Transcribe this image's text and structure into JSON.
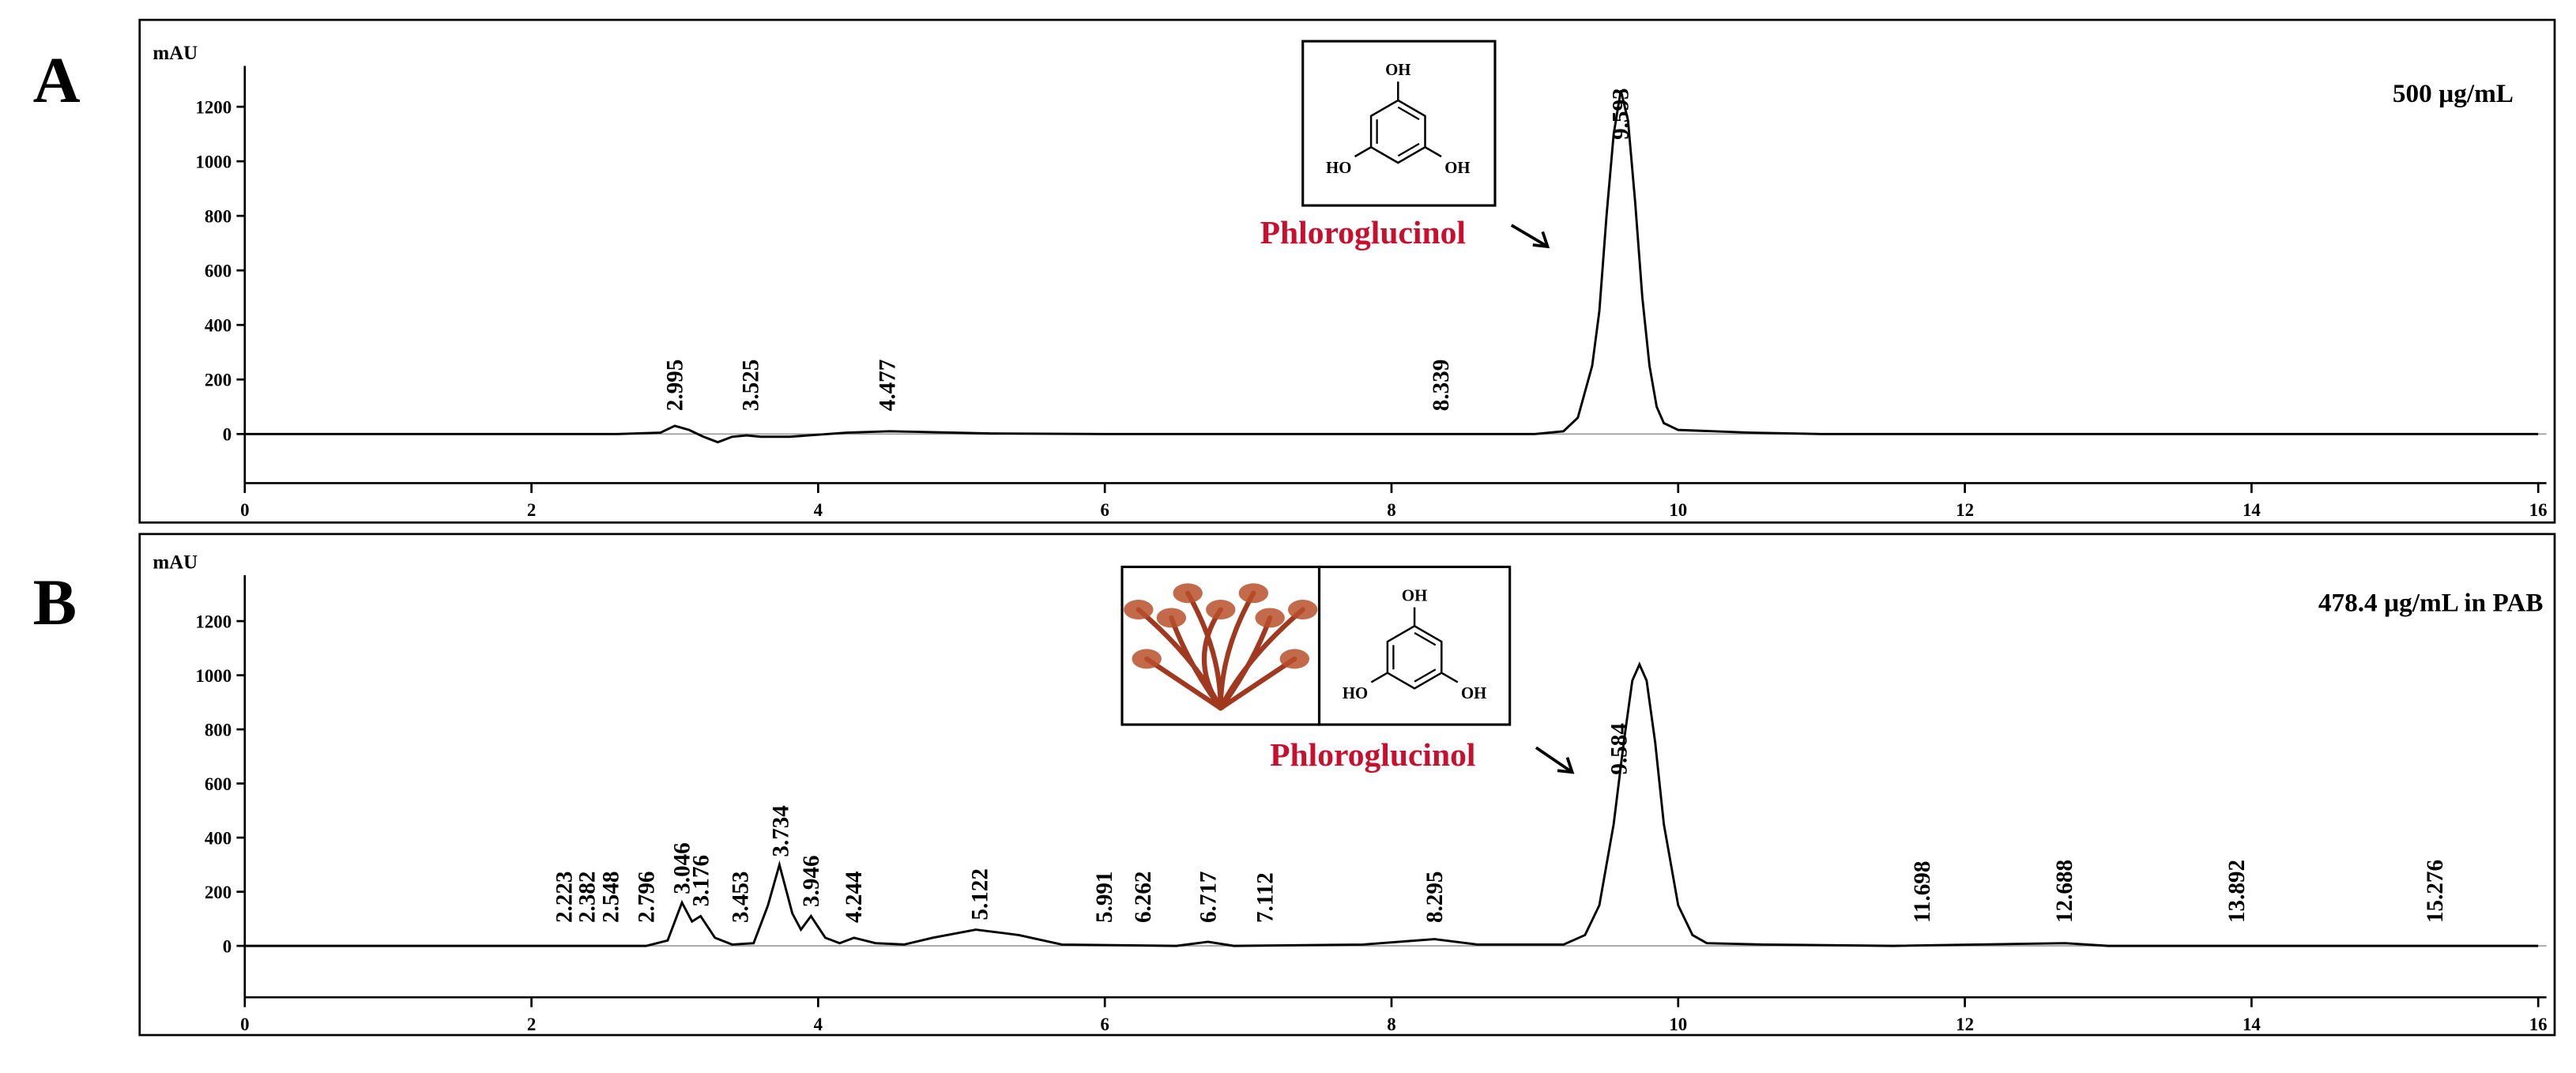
{
  "chart_data": [
    {
      "type": "line",
      "panel_label": "A",
      "y_label": "mAU",
      "concentration": "500 µg/mL",
      "compound": "Phloroglucinol",
      "compound_color": "#c8102e",
      "structure_labels": [
        "OH",
        "HO",
        "OH"
      ],
      "x": [
        0,
        2.6,
        2.9,
        3.0,
        3.1,
        3.2,
        3.3,
        3.4,
        3.5,
        3.6,
        3.8,
        4.2,
        4.5,
        4.7,
        5.2,
        6,
        8,
        9.0,
        9.2,
        9.3,
        9.4,
        9.45,
        9.5,
        9.55,
        9.6,
        9.65,
        9.7,
        9.75,
        9.8,
        9.85,
        9.9,
        10.0,
        10.5,
        11,
        16
      ],
      "series": [
        {
          "color": "#000000",
          "values": [
            0,
            0,
            5,
            30,
            15,
            -10,
            -30,
            -10,
            -5,
            -10,
            -10,
            5,
            10,
            8,
            2,
            0,
            0,
            0,
            10,
            60,
            250,
            450,
            800,
            1100,
            1260,
            1150,
            850,
            500,
            250,
            100,
            40,
            15,
            5,
            0,
            0
          ]
        }
      ],
      "peak_labels": [
        2.995,
        3.525,
        4.477,
        8.339,
        9.593
      ],
      "xlim": [
        0,
        16
      ],
      "xticks": [
        0,
        2,
        4,
        6,
        8,
        10,
        12,
        14,
        16
      ],
      "ylim": [
        -180,
        1350
      ],
      "yticks": [
        0,
        200,
        400,
        600,
        800,
        1000,
        1200
      ]
    },
    {
      "type": "line",
      "panel_label": "B",
      "y_label": "mAU",
      "concentration": "478.4 µg/mL  in PAB",
      "compound": "Phloroglucinol",
      "compound_color": "#c8102e",
      "structure_labels": [
        "OH",
        "HO",
        "OH"
      ],
      "x": [
        0,
        2.8,
        2.95,
        3.05,
        3.12,
        3.18,
        3.28,
        3.4,
        3.55,
        3.65,
        3.73,
        3.82,
        3.88,
        3.95,
        4.05,
        4.15,
        4.25,
        4.4,
        4.6,
        4.8,
        5.1,
        5.4,
        5.7,
        6.5,
        6.72,
        6.9,
        7.8,
        8.3,
        8.6,
        9.2,
        9.35,
        9.45,
        9.55,
        9.62,
        9.68,
        9.73,
        9.78,
        9.84,
        9.9,
        10.0,
        10.1,
        10.2,
        10.6,
        11.5,
        12.7,
        13,
        16
      ],
      "series": [
        {
          "color": "#000000",
          "values": [
            0,
            0,
            20,
            160,
            90,
            110,
            30,
            5,
            10,
            150,
            300,
            120,
            60,
            110,
            30,
            10,
            30,
            10,
            5,
            30,
            60,
            40,
            5,
            0,
            15,
            0,
            5,
            25,
            5,
            5,
            40,
            150,
            450,
            750,
            980,
            1040,
            980,
            750,
            450,
            150,
            40,
            10,
            5,
            0,
            10,
            0,
            0
          ]
        }
      ],
      "peak_labels": [
        2.223,
        2.382,
        2.548,
        2.796,
        3.046,
        3.176,
        3.453,
        3.734,
        3.946,
        4.244,
        5.122,
        5.991,
        6.262,
        6.717,
        7.112,
        8.295,
        9.584,
        11.698,
        12.688,
        13.892,
        15.276
      ],
      "xlim": [
        0,
        16
      ],
      "xticks": [
        0,
        2,
        4,
        6,
        8,
        10,
        12,
        14,
        16
      ],
      "ylim": [
        -190,
        1370
      ],
      "yticks": [
        0,
        200,
        400,
        600,
        800,
        1000,
        1200
      ]
    }
  ]
}
